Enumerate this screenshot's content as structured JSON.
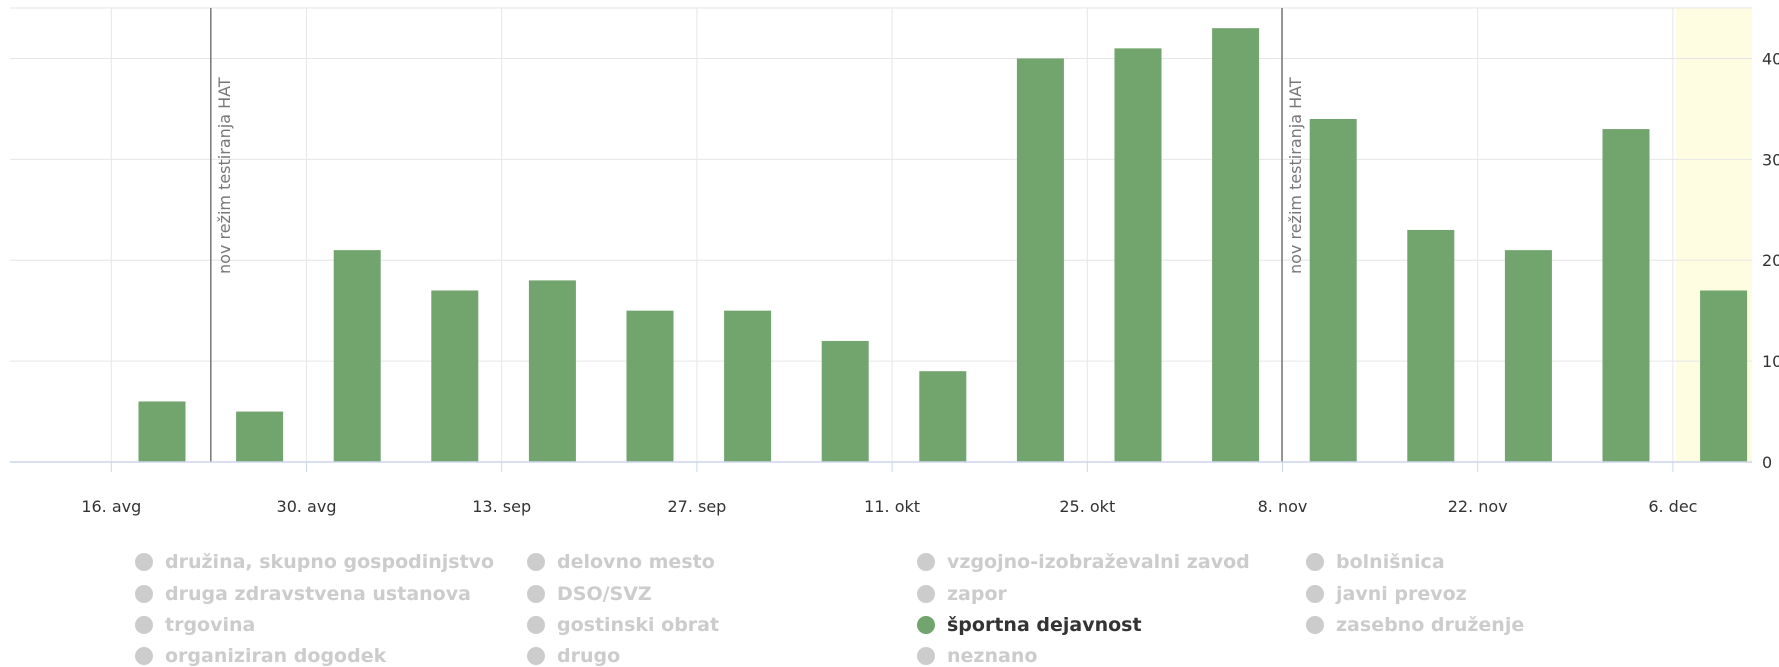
{
  "chart_data": {
    "type": "bar",
    "x_ticks": [
      "16. avg",
      "30. avg",
      "13. sep",
      "27. sep",
      "11. okt",
      "25. okt",
      "8. nov",
      "22. nov",
      "6. dec"
    ],
    "x": [
      "19. avg",
      "26. avg",
      "2. sep",
      "9. sep",
      "16. sep",
      "23. sep",
      "30. sep",
      "7. okt",
      "14. okt",
      "21. okt",
      "28. okt",
      "4. nov",
      "11. nov",
      "18. nov",
      "25. nov",
      "2. dec",
      "9. dec"
    ],
    "series": [
      {
        "name": "športna dejavnost",
        "color": "#72a46e",
        "values": [
          6,
          5,
          21,
          17,
          18,
          15,
          15,
          12,
          9,
          40,
          41,
          43,
          34,
          23,
          21,
          33,
          17
        ]
      }
    ],
    "y_ticks": [
      "0",
      "10",
      "20",
      "30",
      "40"
    ],
    "ylim": [
      0,
      45
    ],
    "grid": true,
    "y_axis_side": "right",
    "plot_lines": [
      {
        "at": "26. avg",
        "label": "nov režim testiranja HAT"
      },
      {
        "at": "8. nov",
        "label": "nov režim testiranja HAT"
      }
    ],
    "plot_band": {
      "from": "9. dec",
      "color": "#fefde2"
    },
    "legend": [
      {
        "label": "družina, skupno gospodinjstvo",
        "active": false
      },
      {
        "label": "delovno mesto",
        "active": false
      },
      {
        "label": "vzgojno-izobraževalni zavod",
        "active": false
      },
      {
        "label": "bolnišnica",
        "active": false
      },
      {
        "label": "druga zdravstvena ustanova",
        "active": false
      },
      {
        "label": "DSO/SVZ",
        "active": false
      },
      {
        "label": "zapor",
        "active": false
      },
      {
        "label": "javni prevoz",
        "active": false
      },
      {
        "label": "trgovina",
        "active": false
      },
      {
        "label": "gostinski obrat",
        "active": false
      },
      {
        "label": "športna dejavnost",
        "active": true
      },
      {
        "label": "zasebno druženje",
        "active": false
      },
      {
        "label": "organiziran dogodek",
        "active": false
      },
      {
        "label": "drugo",
        "active": false
      },
      {
        "label": "neznano",
        "active": false
      }
    ],
    "legend_color_active": "#72a46e",
    "legend_color_inactive": "#cccccc"
  }
}
